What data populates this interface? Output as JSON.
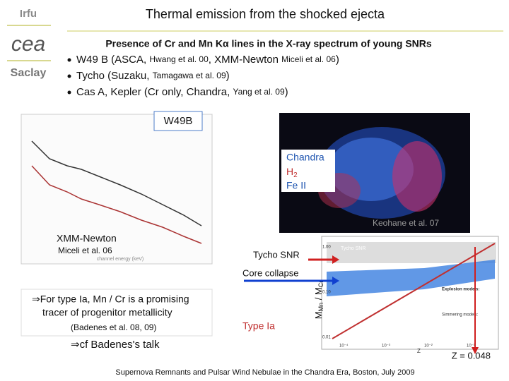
{
  "header": {
    "logo": "Irfu",
    "title": "Thermal emission from the shocked ejecta",
    "cea": "cea",
    "lab": "Saclay"
  },
  "subtitle": "Presence of Cr and Mn Kα lines in the X-ray spectrum of young SNRs",
  "bullets": [
    [
      "W49 B (ASCA, ",
      "Hwang et al. 00",
      ", XMM-Newton ",
      "Miceli et al. 06",
      ")"
    ],
    [
      "Tycho (Suzaku, ",
      "Tamagawa et al. 09",
      ")"
    ],
    [
      "Cas A, Kepler (Cr only, Chandra, ",
      "Yang et al. 09",
      ")"
    ]
  ],
  "figures": {
    "target": "W49B",
    "chandra": "Chandra",
    "h2": [
      "H",
      "2"
    ],
    "fe": "Fe II",
    "image_credit": "Keohane et al. 07",
    "spectrum_instrument": "XMM-Newton",
    "spectrum_credit": "Miceli et al. 06",
    "spectrum_xlabel": "channel energy (keV)",
    "plot_tycho": "Tycho SNR",
    "plot_models": "Explosion models:",
    "plot_simmering": "Simmering models:",
    "plot_x": "Z",
    "plot_yticks": [
      "1.00",
      "0.10",
      "0.01"
    ],
    "plot_xticks": [
      "10⁻⁴",
      "10⁻³",
      "10⁻²",
      "10⁻¹"
    ]
  },
  "annotations": {
    "tycho": "Tycho SNR",
    "core_collapse": "Core collapse",
    "type_ia": "Type Ia",
    "ratio": [
      "M",
      "Mn",
      " / M",
      "Cr"
    ],
    "z": "Z = 0.048"
  },
  "conclusion": {
    "lines": [
      "⇒For type Ia, Mn / Cr is a promising",
      "tracer of progenitor metallicity"
    ],
    "ref": "(Badenes et al. 08, 09)",
    "talk": "⇒cf Badenes's talk"
  },
  "footer": "Supernova Remnants and Pulsar Wind Nebulae in the Chandra Era, Boston, July 2009"
}
